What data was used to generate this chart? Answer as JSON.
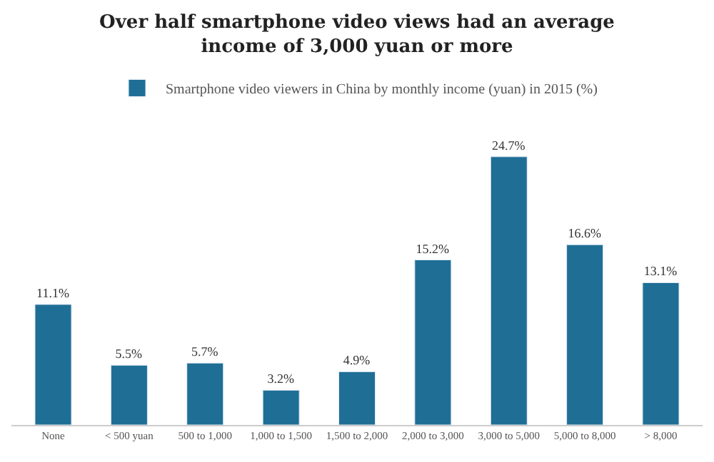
{
  "chart_data": {
    "type": "bar",
    "title": "Over half smartphone video views had an average income of 3,000 yuan or more",
    "categories": [
      "None",
      "< 500 yuan",
      "500 to 1,000",
      "1,000 to 1,500",
      "1,500 to 2,000",
      "2,000 to 3,000",
      "3,000 to 5,000",
      "5,000 to 8,000",
      "> 8,000"
    ],
    "series": [
      {
        "name": "Smartphone video viewers in China by monthly income (yuan) in 2015 (%)",
        "color": "#1f6e95",
        "values": [
          11.1,
          5.5,
          5.7,
          3.2,
          4.9,
          15.2,
          24.7,
          16.6,
          13.1
        ],
        "value_labels": [
          "11.1%",
          "5.5%",
          "5.7%",
          "3.2%",
          "4.9%",
          "15.2%",
          "24.7%",
          "16.6%",
          "13.1%"
        ]
      }
    ],
    "legend": "top"
  }
}
